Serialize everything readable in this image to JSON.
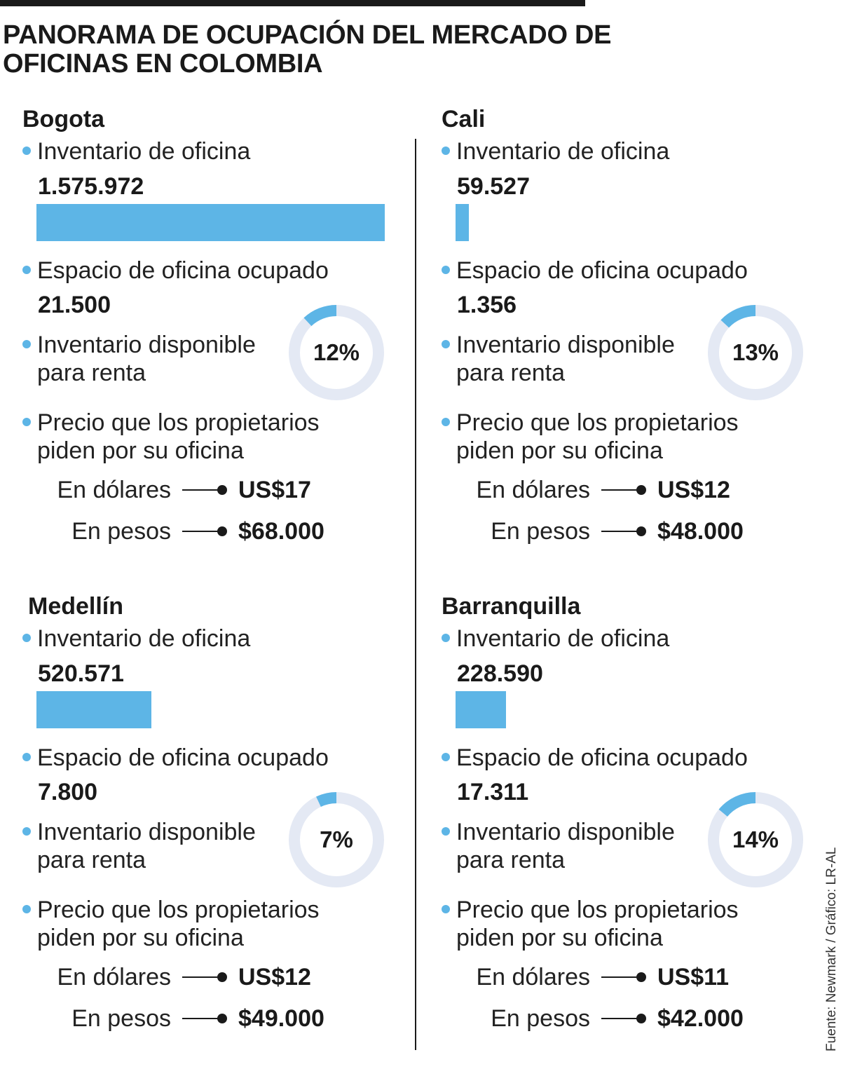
{
  "title": "PANORAMA DE OCUPACIÓN DEL MERCADO DE OFICINAS EN COLOMBIA",
  "source": "Fuente: Newmark / Gráfico: LR-AL",
  "labels": {
    "inventory": "Inventario de oficina",
    "occupied": "Espacio de oficina ocupado",
    "available_line1": "Inventario disponible",
    "available_line2": "para renta",
    "price_line1": "Precio que los propietarios",
    "price_line2": "piden por su oficina",
    "usd": "En dólares",
    "cop": "En pesos"
  },
  "colors": {
    "accent": "#5db5e6",
    "track": "#e4e9f4",
    "ink": "#1a1a1a"
  },
  "chart_data": {
    "type": "bar",
    "title": "PANORAMA DE OCUPACIÓN DEL MERCADO DE OFICINAS EN COLOMBIA",
    "categories": [
      "Bogota",
      "Cali",
      "Medellín",
      "Barranquilla"
    ],
    "series": [
      {
        "name": "Inventario de oficina",
        "values": [
          1575972,
          59527,
          520571,
          228590
        ]
      },
      {
        "name": "Espacio de oficina ocupado",
        "values": [
          21500,
          1356,
          7800,
          17311
        ]
      },
      {
        "name": "Inventario disponible para renta (%)",
        "values": [
          12,
          13,
          7,
          14
        ]
      }
    ],
    "xlabel": "",
    "ylabel": "",
    "ylim": [
      0,
      1575972
    ]
  },
  "cities": [
    {
      "name": "Bogota",
      "inventory": 1575972,
      "inventory_label": "1.575.972",
      "occupied_label": "21.500",
      "available_pct": 12,
      "available_label": "12%",
      "price_usd": "US$17",
      "price_cop": "$68.000"
    },
    {
      "name": "Cali",
      "inventory": 59527,
      "inventory_label": "59.527",
      "occupied_label": "1.356",
      "available_pct": 13,
      "available_label": "13%",
      "price_usd": "US$12",
      "price_cop": "$48.000"
    },
    {
      "name": "Medellín",
      "inventory": 520571,
      "inventory_label": "520.571",
      "occupied_label": "7.800",
      "available_pct": 7,
      "available_label": "7%",
      "price_usd": "US$12",
      "price_cop": "$49.000"
    },
    {
      "name": "Barranquilla",
      "inventory": 228590,
      "inventory_label": "228.590",
      "occupied_label": "17.311",
      "available_pct": 14,
      "available_label": "14%",
      "price_usd": "US$11",
      "price_cop": "$42.000"
    }
  ]
}
